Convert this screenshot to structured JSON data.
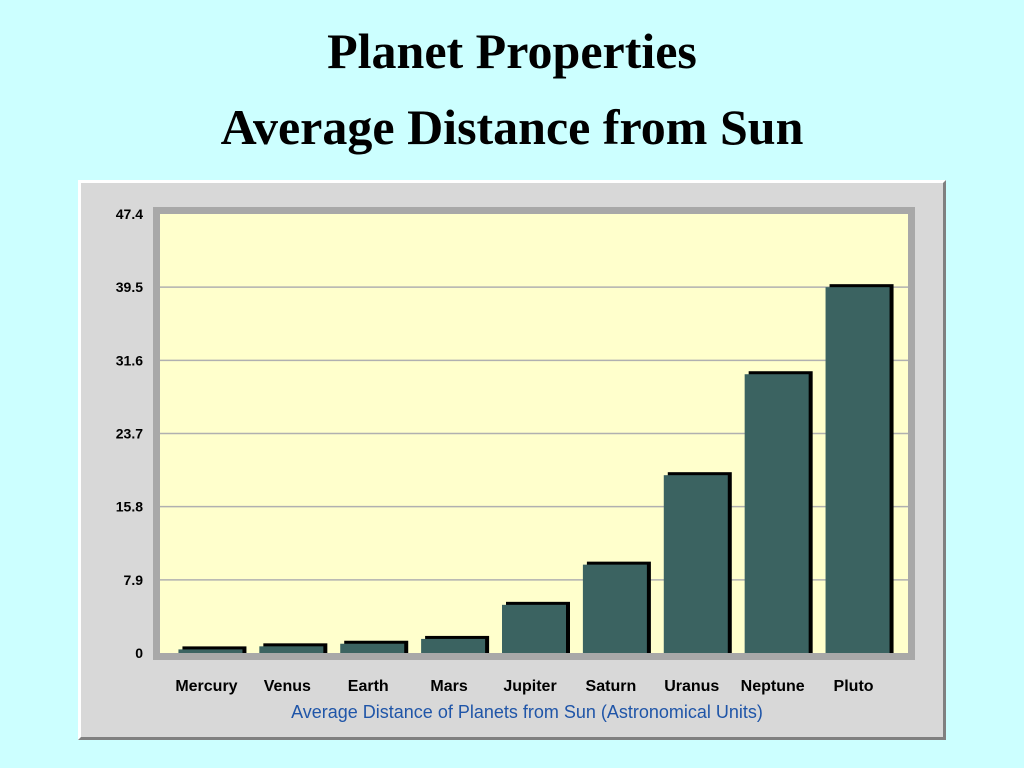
{
  "slide": {
    "title_line1": "Planet Properties",
    "title_line2": "Average Distance from Sun"
  },
  "colors": {
    "background": "#ccffff",
    "plot_background": "#ffffcc",
    "bar_fill": "#3b6361",
    "bar_shadow": "#000000",
    "xlabel_color": "#1f55a8"
  },
  "chart_data": {
    "type": "bar",
    "title": "",
    "xlabel": "Average Distance of Planets from Sun (Astronomical Units)",
    "ylabel": "",
    "categories": [
      "Mercury",
      "Venus",
      "Earth",
      "Mars",
      "Jupiter",
      "Saturn",
      "Uranus",
      "Neptune",
      "Pluto"
    ],
    "values": [
      0.39,
      0.72,
      1.0,
      1.52,
      5.2,
      9.54,
      19.2,
      30.1,
      39.5
    ],
    "ylim": [
      0,
      47.4
    ],
    "yticks": [
      "0",
      "7.9",
      "15.8",
      "23.7",
      "31.6",
      "39.5",
      "47.4"
    ],
    "grid": true,
    "legend": "none"
  }
}
